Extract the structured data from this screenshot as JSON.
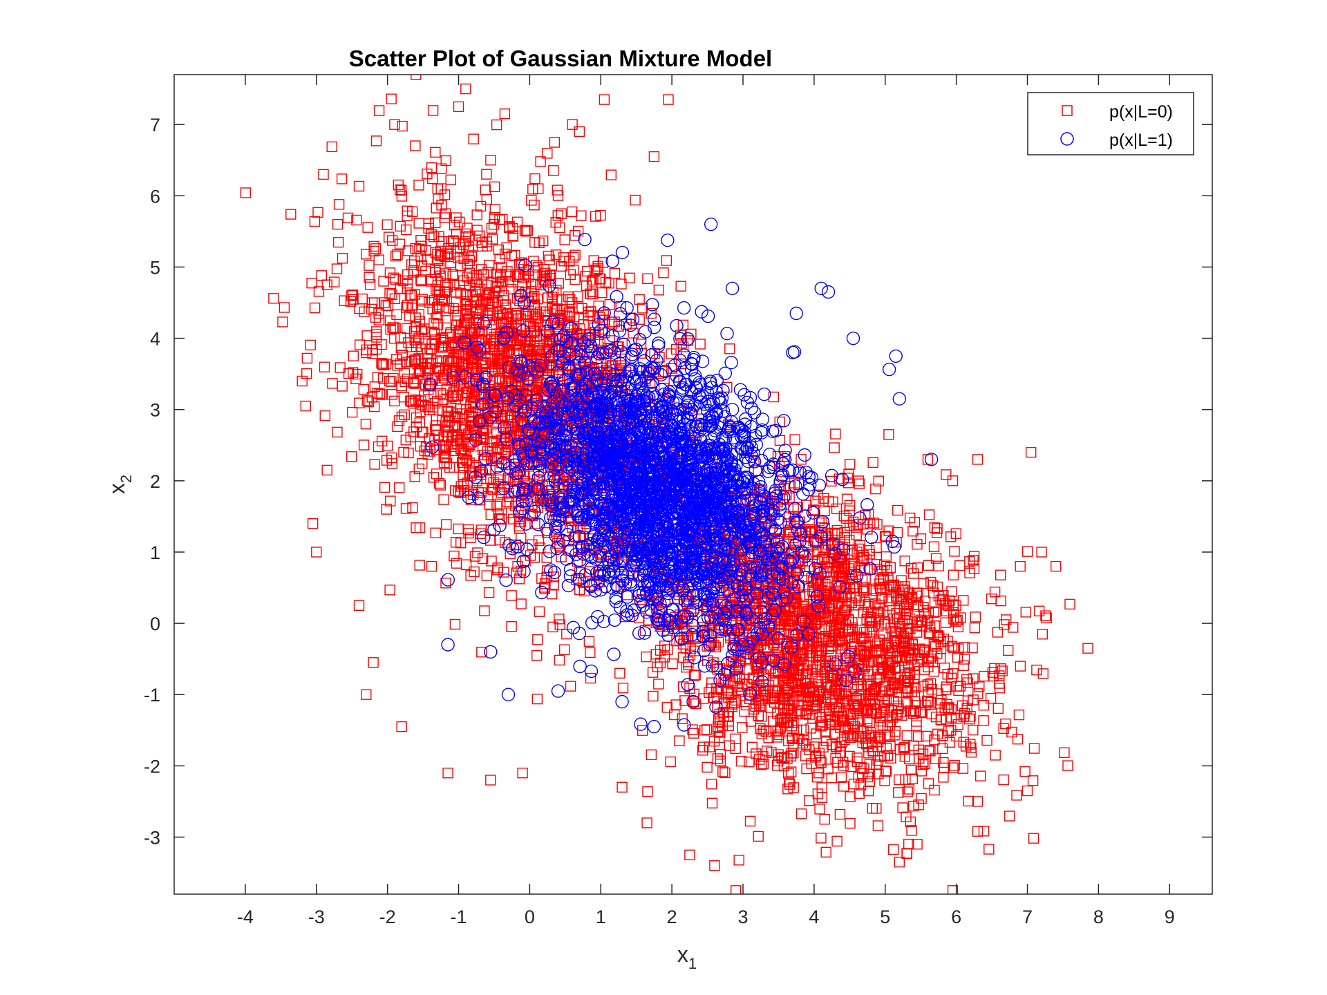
{
  "chart_data": {
    "type": "scatter",
    "title": "Scatter Plot of Gaussian Mixture Model",
    "xlabel": "x",
    "xlabel_sub": "1",
    "ylabel": "x",
    "ylabel_sub": "2",
    "xlim": [
      -5,
      9.6
    ],
    "ylim": [
      -3.8,
      7.7
    ],
    "xticks": [
      -4,
      -3,
      -2,
      -1,
      0,
      1,
      2,
      3,
      4,
      5,
      6,
      7,
      8,
      9
    ],
    "yticks": [
      -3,
      -2,
      -1,
      0,
      1,
      2,
      3,
      4,
      5,
      6,
      7
    ],
    "grid": false,
    "legend_position": "top-right",
    "series": [
      {
        "name": "p(x|L=0)",
        "marker": "square",
        "color": "#ff0000",
        "components": [
          {
            "mean": [
              -0.2,
              3.3
            ],
            "std": [
              1.05,
              1.25
            ],
            "corr": -0.35,
            "count": 2200
          },
          {
            "mean": [
              4.0,
              -0.2
            ],
            "std": [
              1.15,
              1.05
            ],
            "corr": -0.3,
            "count": 2200
          }
        ],
        "points": [
          [
            -1.6,
            7.7
          ],
          [
            -0.9,
            7.5
          ],
          [
            1.05,
            7.35
          ],
          [
            1.95,
            7.35
          ],
          [
            -1.0,
            7.25
          ],
          [
            -0.35,
            7.15
          ],
          [
            -1.9,
            7.0
          ],
          [
            0.6,
            7.0
          ],
          [
            -2.9,
            6.3
          ],
          [
            -2.7,
            5.6
          ],
          [
            -2.85,
            4.75
          ],
          [
            -3.2,
            3.4
          ],
          [
            -3.15,
            3.05
          ],
          [
            -2.85,
            2.15
          ],
          [
            -3.05,
            1.4
          ],
          [
            -3.0,
            1.0
          ],
          [
            -2.4,
            0.25
          ],
          [
            -2.2,
            -0.55
          ],
          [
            -2.3,
            -1.0
          ],
          [
            -1.8,
            -1.45
          ],
          [
            -1.15,
            -2.1
          ],
          [
            -0.55,
            -2.2
          ],
          [
            -0.1,
            -2.1
          ],
          [
            1.3,
            -2.3
          ],
          [
            1.65,
            -2.8
          ],
          [
            2.25,
            -3.25
          ],
          [
            2.6,
            -3.4
          ],
          [
            2.9,
            -3.75
          ],
          [
            4.15,
            -2.75
          ],
          [
            5.95,
            -3.75
          ],
          [
            5.2,
            -3.35
          ],
          [
            5.45,
            -3.1
          ],
          [
            6.3,
            -2.5
          ],
          [
            7.0,
            -2.35
          ],
          [
            6.55,
            -1.85
          ],
          [
            7.85,
            -0.35
          ],
          [
            7.4,
            0.8
          ],
          [
            7.2,
            1.0
          ],
          [
            6.9,
            0.8
          ],
          [
            7.05,
            2.4
          ],
          [
            6.3,
            2.3
          ],
          [
            5.05,
            2.65
          ],
          [
            5.95,
            2.0
          ],
          [
            6.7,
            0.05
          ],
          [
            5.6,
            2.3
          ],
          [
            0.35,
            6.75
          ],
          [
            0.7,
            6.9
          ],
          [
            1.75,
            6.55
          ]
        ]
      },
      {
        "name": "p(x|L=1)",
        "marker": "circle",
        "color": "#0000ff",
        "components": [
          {
            "mean": [
              1.8,
              1.9
            ],
            "std": [
              0.95,
              1.0
            ],
            "corr": -0.35,
            "count": 2500
          }
        ],
        "points": [
          [
            2.55,
            5.6
          ],
          [
            4.1,
            4.7
          ],
          [
            4.2,
            4.65
          ],
          [
            5.15,
            3.75
          ],
          [
            5.2,
            3.15
          ],
          [
            5.65,
            2.3
          ],
          [
            4.55,
            4.0
          ],
          [
            3.75,
            4.35
          ],
          [
            -1.15,
            -0.3
          ],
          [
            -0.3,
            -1.0
          ],
          [
            1.75,
            -1.45
          ],
          [
            2.3,
            -1.1
          ],
          [
            -0.55,
            -0.4
          ],
          [
            0.4,
            -0.95
          ],
          [
            1.3,
            -1.1
          ],
          [
            5.1,
            1.15
          ],
          [
            3.7,
            3.8
          ],
          [
            2.85,
            4.7
          ]
        ]
      }
    ]
  }
}
